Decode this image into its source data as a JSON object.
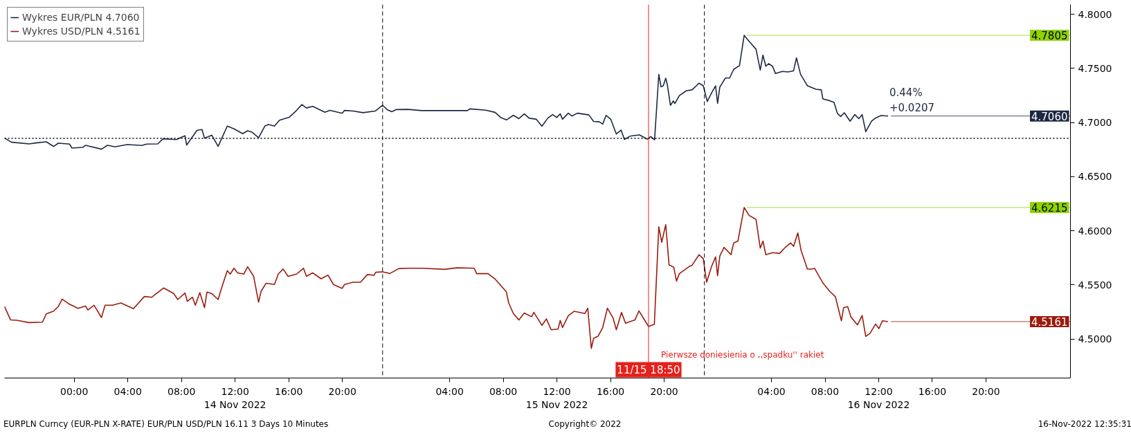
{
  "chart_data": {
    "type": "line",
    "xlim": [
      "2022-11-13T18:48",
      "2022-11-17T02:18"
    ],
    "xticks": [
      {
        "value": "2022-11-14T00:00",
        "label": "00:00"
      },
      {
        "value": "2022-11-14T04:00",
        "label": "04:00"
      },
      {
        "value": "2022-11-14T08:00",
        "label": "08:00"
      },
      {
        "value": "2022-11-14T12:00",
        "label": "12:00\n14 Nov 2022"
      },
      {
        "value": "2022-11-14T16:00",
        "label": "16:00"
      },
      {
        "value": "2022-11-14T20:00",
        "label": "20:00"
      },
      {
        "value": "2022-11-15T04:00",
        "label": "04:00"
      },
      {
        "value": "2022-11-15T08:00",
        "label": "08:00"
      },
      {
        "value": "2022-11-15T12:00",
        "label": "12:00\n15 Nov 2022"
      },
      {
        "value": "2022-11-15T16:00",
        "label": "16:00"
      },
      {
        "value": "2022-11-15T20:00",
        "label": "20:00"
      },
      {
        "value": "2022-11-16T04:00",
        "label": "04:00"
      },
      {
        "value": "2022-11-16T08:00",
        "label": "08:00"
      },
      {
        "value": "2022-11-16T12:00",
        "label": "12:00\n16 Nov 2022"
      },
      {
        "value": "2022-11-16T16:00",
        "label": "16:00"
      },
      {
        "value": "2022-11-16T20:00",
        "label": "20:00"
      }
    ],
    "ylim": [
      4.464,
      4.809
    ],
    "yticks": [
      {
        "value": 4.5,
        "label": "4.5000"
      },
      {
        "value": 4.55,
        "label": "4.5500"
      },
      {
        "value": 4.6,
        "label": "4.6000"
      },
      {
        "value": 4.65,
        "label": "4.6500"
      },
      {
        "value": 4.7,
        "label": "4.7000"
      },
      {
        "value": 4.75,
        "label": "4.7500"
      },
      {
        "value": 4.8,
        "label": "4.8000"
      }
    ],
    "grid": false,
    "legend": "top left",
    "series": [
      {
        "name": "Wykres EUR/PLN 4.7060",
        "color": "#1c2841",
        "x": [
          "2022-11-13T18:48",
          "2022-11-13T19:20",
          "2022-11-13T20:38",
          "2022-11-13T21:16",
          "2022-11-13T21:55",
          "2022-11-13T22:28",
          "2022-11-13T22:49",
          "2022-11-13T23:39",
          "2022-11-13T23:50",
          "2022-11-14T00:40",
          "2022-11-14T00:50",
          "2022-11-14T02:02",
          "2022-11-14T02:29",
          "2022-11-14T03:02",
          "2022-11-14T03:57",
          "2022-11-14T05:03",
          "2022-11-14T05:25",
          "2022-11-14T06:14",
          "2022-11-14T06:37",
          "2022-11-14T07:37",
          "2022-11-14T08:16",
          "2022-11-14T08:23",
          "2022-11-14T09:10",
          "2022-11-14T09:32",
          "2022-11-14T09:43",
          "2022-11-14T10:16",
          "2022-11-14T10:44",
          "2022-11-14T11:25",
          "2022-11-14T11:55",
          "2022-11-14T12:34",
          "2022-11-14T12:56",
          "2022-11-14T13:17",
          "2022-11-14T13:45",
          "2022-11-14T14:13",
          "2022-11-14T14:29",
          "2022-11-14T14:56",
          "2022-11-14T15:19",
          "2022-11-14T16:02",
          "2022-11-14T16:35",
          "2022-11-14T16:59",
          "2022-11-14T17:19",
          "2022-11-14T17:47",
          "2022-11-14T18:42",
          "2022-11-14T19:04",
          "2022-11-14T19:59",
          "2022-11-14T20:10",
          "2022-11-14T20:48",
          "2022-11-14T21:32",
          "2022-11-14T22:27",
          "2022-11-14T23:00",
          "2022-11-14T23:22",
          "2022-11-14T23:41",
          "2022-11-15T00:02",
          "2022-11-15T00:53",
          "2022-11-15T01:55",
          "2022-11-15T05:20",
          "2022-11-15T05:30",
          "2022-11-15T06:41",
          "2022-11-15T07:23",
          "2022-11-15T07:49",
          "2022-11-15T08:14",
          "2022-11-15T08:45",
          "2022-11-15T09:10",
          "2022-11-15T09:34",
          "2022-11-15T09:56",
          "2022-11-15T10:28",
          "2022-11-15T10:53",
          "2022-11-15T11:19",
          "2022-11-15T11:41",
          "2022-11-15T11:59",
          "2022-11-15T12:15",
          "2022-11-15T12:25",
          "2022-11-15T12:51",
          "2022-11-15T13:07",
          "2022-11-15T13:32",
          "2022-11-15T14:23",
          "2022-11-15T14:44",
          "2022-11-15T15:10",
          "2022-11-15T15:25",
          "2022-11-15T15:40",
          "2022-11-15T16:01",
          "2022-11-15T16:26",
          "2022-11-15T16:47",
          "2022-11-15T17:02",
          "2022-11-15T17:28",
          "2022-11-15T18:09",
          "2022-11-15T18:45",
          "2022-11-15T19:00",
          "2022-11-15T19:17",
          "2022-11-15T19:36",
          "2022-11-15T19:46",
          "2022-11-15T19:56",
          "2022-11-15T20:07",
          "2022-11-15T20:14",
          "2022-11-15T20:28",
          "2022-11-15T20:41",
          "2022-11-15T20:48",
          "2022-11-15T21:08",
          "2022-11-15T21:39",
          "2022-11-15T22:05",
          "2022-11-15T22:36",
          "2022-11-15T22:55",
          "2022-11-15T23:13",
          "2022-11-15T23:32",
          "2022-11-15T23:50",
          "2022-11-15T23:59",
          "2022-11-16T00:09",
          "2022-11-16T00:34",
          "2022-11-16T00:53",
          "2022-11-16T01:11",
          "2022-11-16T01:37",
          "2022-11-16T01:58",
          "2022-11-16T02:20",
          "2022-11-16T02:51",
          "2022-11-16T03:10",
          "2022-11-16T03:22",
          "2022-11-16T03:35",
          "2022-11-16T03:47",
          "2022-11-16T04:05",
          "2022-11-16T04:18",
          "2022-11-16T04:49",
          "2022-11-16T05:14",
          "2022-11-16T05:39",
          "2022-11-16T05:52",
          "2022-11-16T06:10",
          "2022-11-16T06:41",
          "2022-11-16T07:19",
          "2022-11-16T07:43",
          "2022-11-16T07:50",
          "2022-11-16T08:21",
          "2022-11-16T08:40",
          "2022-11-16T08:55",
          "2022-11-16T09:10",
          "2022-11-16T09:26",
          "2022-11-16T09:52",
          "2022-11-16T10:13",
          "2022-11-16T10:31",
          "2022-11-16T10:46",
          "2022-11-16T11:02",
          "2022-11-16T11:28",
          "2022-11-16T11:46",
          "2022-11-16T12:11",
          "2022-11-16T12:42"
        ],
        "values": [
          4.6856,
          4.6818,
          4.6803,
          4.6813,
          4.6822,
          4.6779,
          4.6809,
          4.6801,
          4.6764,
          4.6771,
          4.679,
          4.6754,
          4.679,
          4.6775,
          4.6796,
          4.6788,
          4.6801,
          4.6803,
          4.685,
          4.6843,
          4.6877,
          4.6792,
          4.6929,
          4.6935,
          4.6856,
          4.6882,
          4.6779,
          4.6967,
          4.6942,
          4.6897,
          4.6924,
          4.6909,
          4.686,
          4.6967,
          4.6982,
          4.6967,
          4.7021,
          4.7048,
          4.7112,
          4.7166,
          4.7134,
          4.7149,
          4.7095,
          4.7112,
          4.7085,
          4.7112,
          4.7106,
          4.7091,
          4.7106,
          4.7159,
          4.7117,
          4.71,
          4.712,
          4.7121,
          4.711,
          4.711,
          4.7126,
          4.7114,
          4.7094,
          4.7046,
          4.7024,
          4.7066,
          4.7036,
          4.708,
          4.704,
          4.703,
          4.6966,
          4.704,
          4.7074,
          4.7046,
          4.708,
          4.703,
          4.7086,
          4.706,
          4.7086,
          4.707,
          4.701,
          4.7006,
          4.6986,
          4.7066,
          4.703,
          4.6894,
          4.693,
          4.6844,
          4.6874,
          4.6886,
          4.6846,
          4.687,
          4.684,
          4.7445,
          4.7329,
          4.7339,
          4.7409,
          4.7349,
          4.7159,
          4.7199,
          4.7175,
          4.7249,
          4.7293,
          4.7302,
          4.7363,
          4.7339,
          4.7194,
          4.7273,
          4.7339,
          4.7177,
          4.7327,
          4.7411,
          4.7411,
          4.7491,
          4.7525,
          4.7805,
          4.775,
          4.7677,
          4.7484,
          4.7622,
          4.752,
          4.7544,
          4.752,
          4.7452,
          4.7472,
          4.7467,
          4.7477,
          4.7597,
          4.7447,
          4.7339,
          4.7307,
          4.7302,
          4.7218,
          4.7201,
          4.7186,
          4.7085,
          4.7056,
          4.709,
          4.7012,
          4.7073,
          4.7036,
          4.7073,
          4.6915,
          4.7012,
          4.7041,
          4.7065,
          4.706
        ]
      },
      {
        "name": "Wykres USD/PLN 4.5161",
        "color": "#9b1b0e",
        "x": [
          "2022-11-13T18:48",
          "2022-11-13T19:15",
          "2022-11-13T19:43",
          "2022-11-13T20:38",
          "2022-11-13T21:38",
          "2022-11-13T21:55",
          "2022-11-13T22:28",
          "2022-11-13T22:49",
          "2022-11-13T23:06",
          "2022-11-13T23:34",
          "2022-11-14T00:17",
          "2022-11-14T00:50",
          "2022-11-14T01:01",
          "2022-11-14T01:29",
          "2022-11-14T02:02",
          "2022-11-14T02:18",
          "2022-11-14T02:51",
          "2022-11-14T03:29",
          "2022-11-14T04:25",
          "2022-11-14T05:14",
          "2022-11-14T05:47",
          "2022-11-14T06:40",
          "2022-11-14T07:26",
          "2022-11-14T07:43",
          "2022-11-14T08:16",
          "2022-11-14T08:26",
          "2022-11-14T08:49",
          "2022-11-14T09:02",
          "2022-11-14T09:22",
          "2022-11-14T09:43",
          "2022-11-14T09:54",
          "2022-11-14T10:16",
          "2022-11-14T10:44",
          "2022-11-14T11:00",
          "2022-11-14T11:25",
          "2022-11-14T11:38",
          "2022-11-14T11:55",
          "2022-11-14T12:11",
          "2022-11-14T12:39",
          "2022-11-14T12:56",
          "2022-11-14T13:23",
          "2022-11-14T13:45",
          "2022-11-14T13:56",
          "2022-11-14T14:18",
          "2022-11-14T14:56",
          "2022-11-14T15:13",
          "2022-11-14T15:35",
          "2022-11-14T15:57",
          "2022-11-14T16:35",
          "2022-11-14T17:06",
          "2022-11-14T17:19",
          "2022-11-14T17:47",
          "2022-11-14T18:25",
          "2022-11-14T18:56",
          "2022-11-14T19:20",
          "2022-11-14T19:59",
          "2022-11-14T20:10",
          "2022-11-14T20:48",
          "2022-11-14T21:21",
          "2022-11-14T21:52",
          "2022-11-14T22:22",
          "2022-11-14T22:29",
          "2022-11-14T23:00",
          "2022-11-14T23:22",
          "2022-11-14T23:31",
          "2022-11-15T00:12",
          "2022-11-15T00:58",
          "2022-11-15T01:55",
          "2022-11-15T03:37",
          "2022-11-15T04:34",
          "2022-11-15T05:50",
          "2022-11-15T06:01",
          "2022-11-15T06:52",
          "2022-11-15T07:23",
          "2022-11-15T08:14",
          "2022-11-15T08:24",
          "2022-11-15T08:45",
          "2022-11-15T09:10",
          "2022-11-15T09:34",
          "2022-11-15T10:07",
          "2022-11-15T10:17",
          "2022-11-15T10:53",
          "2022-11-15T11:13",
          "2022-11-15T11:34",
          "2022-11-15T12:05",
          "2022-11-15T12:15",
          "2022-11-15T12:25",
          "2022-11-15T12:51",
          "2022-11-15T13:17",
          "2022-11-15T14:05",
          "2022-11-15T14:18",
          "2022-11-15T14:34",
          "2022-11-15T14:44",
          "2022-11-15T15:04",
          "2022-11-15T15:25",
          "2022-11-15T15:46",
          "2022-11-15T16:11",
          "2022-11-15T16:26",
          "2022-11-15T16:49",
          "2022-11-15T17:07",
          "2022-11-15T17:49",
          "2022-11-15T18:07",
          "2022-11-15T18:29",
          "2022-11-15T18:50",
          "2022-11-15T19:16",
          "2022-11-15T19:36",
          "2022-11-15T19:49",
          "2022-11-15T20:07",
          "2022-11-15T20:22",
          "2022-11-15T20:43",
          "2022-11-15T20:55",
          "2022-11-15T21:08",
          "2022-11-15T21:55",
          "2022-11-15T22:05",
          "2022-11-15T22:36",
          "2022-11-15T22:55",
          "2022-11-15T23:10",
          "2022-11-15T23:32",
          "2022-11-15T23:50",
          "2022-11-15T23:59",
          "2022-11-16T00:09",
          "2022-11-16T00:28",
          "2022-11-16T00:59",
          "2022-11-16T01:11",
          "2022-11-16T01:30",
          "2022-11-16T01:58",
          "2022-11-16T02:20",
          "2022-11-16T02:51",
          "2022-11-16T03:10",
          "2022-11-16T03:22",
          "2022-11-16T03:35",
          "2022-11-16T04:05",
          "2022-11-16T04:37",
          "2022-11-16T05:02",
          "2022-11-16T05:26",
          "2022-11-16T05:39",
          "2022-11-16T05:58",
          "2022-11-16T06:13",
          "2022-11-16T06:41",
          "2022-11-16T07:00",
          "2022-11-16T07:13",
          "2022-11-16T07:37",
          "2022-11-16T07:52",
          "2022-11-16T08:21",
          "2022-11-16T08:46",
          "2022-11-16T09:13",
          "2022-11-16T09:23",
          "2022-11-16T09:41",
          "2022-11-16T09:56",
          "2022-11-16T10:25",
          "2022-11-16T10:46",
          "2022-11-16T11:02",
          "2022-11-16T11:21",
          "2022-11-16T11:46",
          "2022-11-16T12:01",
          "2022-11-16T12:17",
          "2022-11-16T12:42"
        ],
        "values": [
          4.5301,
          4.5177,
          4.5173,
          4.5152,
          4.5156,
          4.5233,
          4.5258,
          4.5301,
          4.5369,
          4.5327,
          4.5284,
          4.5305,
          4.5269,
          4.5312,
          4.5199,
          4.5312,
          4.5312,
          4.5333,
          4.528,
          4.5393,
          4.5386,
          4.5472,
          4.5419,
          4.5365,
          4.5425,
          4.5348,
          4.5386,
          4.5312,
          4.5429,
          4.529,
          4.5434,
          4.5419,
          4.5365,
          4.5476,
          4.5632,
          4.56,
          4.5654,
          4.5611,
          4.56,
          4.5668,
          4.5579,
          4.534,
          4.544,
          4.5515,
          4.5504,
          4.56,
          4.5647,
          4.5579,
          4.56,
          4.5654,
          4.5579,
          4.5611,
          4.5557,
          4.559,
          4.5504,
          4.5468,
          4.5504,
          4.5525,
          4.5525,
          4.5596,
          4.5589,
          4.5617,
          4.5621,
          4.5611,
          4.5604,
          4.565,
          4.5654,
          4.5654,
          4.5644,
          4.5658,
          4.5654,
          4.5604,
          4.5604,
          4.5555,
          4.5435,
          4.5335,
          4.5236,
          4.5176,
          4.524,
          4.5206,
          4.5246,
          4.5126,
          4.5186,
          4.5086,
          4.5092,
          4.5172,
          4.5106,
          4.5216,
          4.5256,
          4.5236,
          4.5285,
          4.4913,
          4.5006,
          4.5026,
          4.5106,
          4.5285,
          4.5196,
          4.5086,
          4.5246,
          4.5146,
          4.5176,
          4.526,
          4.5186,
          4.5116,
          4.5136,
          4.6037,
          4.5894,
          4.6057,
          4.5684,
          4.5664,
          4.5535,
          4.5604,
          4.5674,
          4.5682,
          4.5779,
          4.5743,
          4.5525,
          4.567,
          4.5759,
          4.5585,
          4.5767,
          4.5847,
          4.5779,
          4.5888,
          4.5905,
          4.6215,
          4.6142,
          4.6105,
          4.5839,
          4.5905,
          4.5779,
          4.5798,
          4.5791,
          4.5847,
          4.5888,
          4.5856,
          4.598,
          4.5815,
          4.5646,
          4.5646,
          4.5653,
          4.5566,
          4.5513,
          4.544,
          4.5392,
          4.5169,
          4.529,
          4.53,
          4.5203,
          4.5131,
          4.5218,
          4.5024,
          4.5053,
          4.5138,
          4.5097,
          4.5169,
          4.5161
        ]
      }
    ],
    "ref_lines": [
      {
        "axis": "x",
        "value": "2022-11-14T23:00",
        "color": "#000000",
        "line_style": "dashed"
      },
      {
        "axis": "x",
        "value": "2022-11-15T23:00",
        "color": "#000000",
        "line_style": "dashed"
      },
      {
        "axis": "x",
        "value": "2022-11-15T18:50",
        "label": "11/15 18:50",
        "color": "#e8201a",
        "line_style": "solid"
      },
      {
        "axis": "y",
        "value": 4.6854,
        "color": "#000000",
        "line_style": "dotted"
      },
      {
        "axis": "y",
        "value": 4.7805,
        "label": "4.7805",
        "color": "#8fd400",
        "line_style": "solid"
      },
      {
        "axis": "y",
        "value": 4.6215,
        "label": "4.6215",
        "color": "#8fd400",
        "line_style": "solid"
      },
      {
        "axis": "y",
        "value": 4.706,
        "label": "4.7060",
        "color": "#1c2841",
        "line_style": "solid"
      },
      {
        "axis": "y",
        "value": 4.5161,
        "label": "4.5161",
        "color": "#9b1b0e",
        "line_style": "solid"
      }
    ],
    "annotations": [
      "EURPLN Curncy (EUR-PLN X-RATE) EUR/PLN USD/PLN 16.11 3 Days 10 Minutes",
      "Copyright© 2022",
      "16-Nov-2022 12:35:31",
      {
        "text": "0.44%\n+0.0207",
        "x": "2022-11-16T12:48",
        "y": 4.708
      },
      "Pierwsze doniesienia o ,,spadku'' rakiet"
    ]
  }
}
